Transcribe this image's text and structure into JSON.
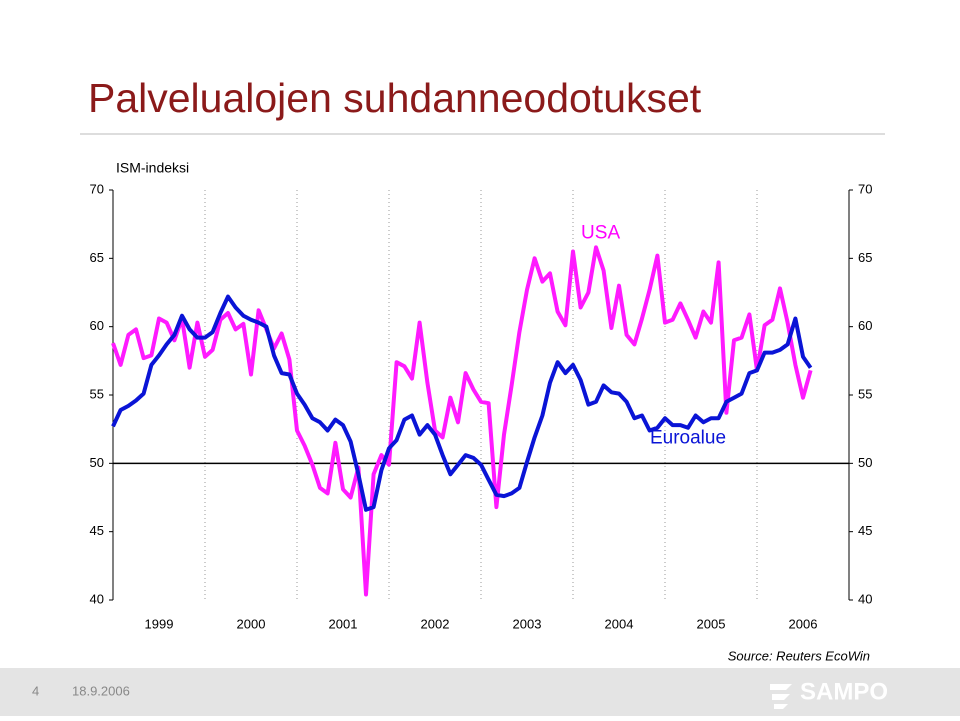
{
  "chart_data": {
    "type": "line",
    "title": "Palvelualojen suhdanneodotukset",
    "y_label": "ISM-indeksi",
    "source": "Source: Reuters EcoWin",
    "footer": {
      "page": "4",
      "date": "18.9.2006",
      "logo": "SAMPO"
    },
    "annotations": [
      {
        "text": "USA",
        "x": 2004.3,
        "y": 66.8,
        "color": "#ff00ff"
      },
      {
        "text": "Euroalue",
        "x": 2005.25,
        "y": 51.8,
        "color": "#0a14d6"
      }
    ],
    "x": [
      1999,
      1999.083,
      1999.167,
      1999.25,
      1999.333,
      1999.417,
      1999.5,
      1999.583,
      1999.667,
      1999.75,
      1999.833,
      1999.917,
      2000,
      2000.083,
      2000.167,
      2000.25,
      2000.333,
      2000.417,
      2000.5,
      2000.583,
      2000.667,
      2000.75,
      2000.833,
      2000.917,
      2001,
      2001.083,
      2001.167,
      2001.25,
      2001.333,
      2001.417,
      2001.5,
      2001.583,
      2001.667,
      2001.75,
      2001.833,
      2001.917,
      2002,
      2002.083,
      2002.167,
      2002.25,
      2002.333,
      2002.417,
      2002.5,
      2002.583,
      2002.667,
      2002.75,
      2002.833,
      2002.917,
      2003,
      2003.083,
      2003.167,
      2003.25,
      2003.333,
      2003.417,
      2003.5,
      2003.583,
      2003.667,
      2003.75,
      2003.833,
      2003.917,
      2004,
      2004.083,
      2004.167,
      2004.25,
      2004.333,
      2004.417,
      2004.5,
      2004.583,
      2004.667,
      2004.75,
      2004.833,
      2004.917,
      2005,
      2005.083,
      2005.167,
      2005.25,
      2005.333,
      2005.417,
      2005.5,
      2005.583,
      2005.667,
      2005.75,
      2005.833,
      2005.917,
      2006,
      2006.083,
      2006.167,
      2006.25,
      2006.333,
      2006.417,
      2006.5,
      2006.583
    ],
    "series": [
      {
        "name": "USA",
        "color": "#ff1aff",
        "values": [
          58.8,
          57.2,
          59.4,
          59.8,
          57.7,
          57.9,
          60.6,
          60.3,
          59.0,
          60.6,
          57.0,
          60.3,
          57.8,
          58.3,
          60.5,
          61.0,
          59.8,
          60.2,
          56.5,
          61.2,
          59.8,
          58.4,
          59.5,
          57.6,
          52.4,
          51.3,
          49.9,
          48.2,
          47.8,
          51.5,
          48.1,
          47.5,
          49.7,
          40.4,
          49.2,
          50.6,
          49.9,
          57.4,
          57.1,
          56.2,
          60.3,
          55.9,
          52.4,
          51.9,
          54.8,
          53.0,
          56.6,
          55.4,
          54.5,
          54.4,
          46.8,
          52.1,
          55.7,
          59.6,
          62.7,
          65.0,
          63.3,
          63.9,
          61.1,
          60.1,
          65.5,
          61.4,
          62.5,
          65.8,
          64.1,
          59.9,
          63.0,
          59.4,
          58.7,
          60.6,
          62.7,
          65.2,
          60.3,
          60.5,
          61.7,
          60.5,
          59.2,
          61.1,
          60.3,
          64.7,
          53.7,
          59.0,
          59.2,
          60.9,
          56.8,
          60.1,
          60.5,
          62.8,
          60.3,
          57.2,
          54.8,
          56.8
        ]
      },
      {
        "name": "Euroalue",
        "color": "#0a14d6",
        "values": [
          52.7,
          53.9,
          54.2,
          54.6,
          55.1,
          57.2,
          57.9,
          58.7,
          59.4,
          60.8,
          59.8,
          59.2,
          59.2,
          59.6,
          61.0,
          62.2,
          61.4,
          60.8,
          60.5,
          60.3,
          60.0,
          57.9,
          56.6,
          56.5,
          55.1,
          54.3,
          53.3,
          53.0,
          52.4,
          53.2,
          52.8,
          51.6,
          49.2,
          46.6,
          46.8,
          49.5,
          51.1,
          51.7,
          53.2,
          53.5,
          52.1,
          52.8,
          52.1,
          50.6,
          49.2,
          49.9,
          50.6,
          50.4,
          49.9,
          48.8,
          47.7,
          47.6,
          47.8,
          48.2,
          50.1,
          51.9,
          53.5,
          55.9,
          57.4,
          56.6,
          57.2,
          56.1,
          54.3,
          54.5,
          55.7,
          55.2,
          55.1,
          54.5,
          53.3,
          53.5,
          52.4,
          52.6,
          53.3,
          52.8,
          52.8,
          52.6,
          53.5,
          53.0,
          53.3,
          53.3,
          54.5,
          54.8,
          55.1,
          56.6,
          56.8,
          58.1,
          58.1,
          58.3,
          58.7,
          60.6,
          57.8,
          57.0
        ]
      }
    ],
    "xlim": [
      1999,
      2007
    ],
    "xticks": [
      {
        "value": 1999.5,
        "label": "1999"
      },
      {
        "value": 2000.5,
        "label": "2000"
      },
      {
        "value": 2001.5,
        "label": "2001"
      },
      {
        "value": 2002.5,
        "label": "2002"
      },
      {
        "value": 2003.5,
        "label": "2003"
      },
      {
        "value": 2004.5,
        "label": "2004"
      },
      {
        "value": 2005.5,
        "label": "2005"
      },
      {
        "value": 2006.5,
        "label": "2006"
      }
    ],
    "x_gridlines": [
      2000,
      2001,
      2002,
      2003,
      2004,
      2005,
      2006
    ],
    "ylim": [
      40,
      70
    ],
    "yticks": [
      40,
      45,
      50,
      55,
      60,
      65,
      70
    ],
    "y2lim": [
      40,
      70
    ],
    "y2ticks": [
      40,
      45,
      50,
      55,
      60,
      65,
      70
    ],
    "reference_line": 50
  }
}
